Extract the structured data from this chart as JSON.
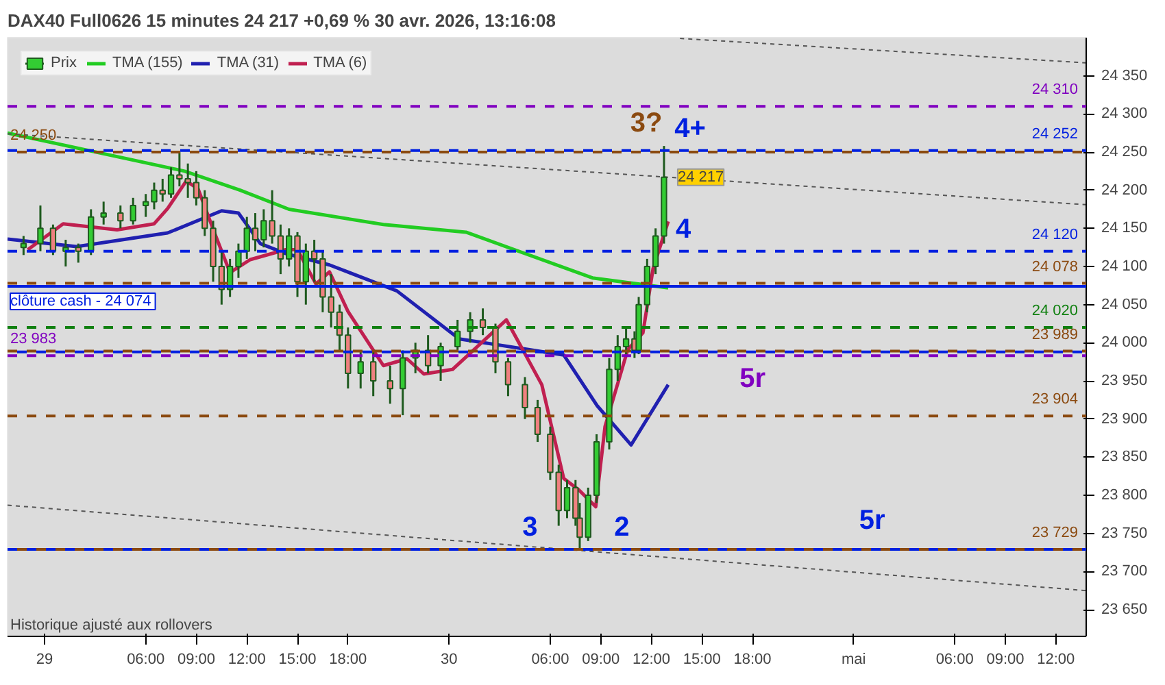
{
  "chart_data": {
    "type": "candlestick",
    "title": "DAX40 Full0626 15 minutes 24 217 +0,69 % 30 avr. 2026, 13:16:08",
    "annotations": [
      {
        "text": "3?",
        "x": "2026-04-30T11:42",
        "y": 24250
      },
      {
        "text": "4+",
        "x": "2026-04-30T14:18",
        "y": 24252
      },
      {
        "text": "4",
        "x": "2026-04-30T13:54",
        "y": 24120
      },
      {
        "text": "5r",
        "x": "2026-04-30T18:00",
        "y": 23983
      },
      {
        "text": "3",
        "x": "2026-04-30T04:48",
        "y": 23729
      },
      {
        "text": "2",
        "x": "2026-04-30T10:15",
        "y": 23729
      },
      {
        "text": "5r",
        "x": "2026-05-01T01:06",
        "y": 23729
      },
      {
        "text": "24 217",
        "x": "2026-04-30T12:45",
        "y": 24217
      },
      "Historique ajusté aux rollovers"
    ],
    "xlim": [
      "2026-04-28T21:48",
      "2026-05-01T13:48"
    ],
    "ylim": [
      23615,
      24400
    ],
    "xticks": [
      {
        "value": "2026-04-29",
        "label": "29"
      },
      {
        "value": "2026-04-29T06:00",
        "label": "06:00"
      },
      {
        "value": "2026-04-29T09:00",
        "label": "09:00"
      },
      {
        "value": "2026-04-29T12:00",
        "label": "12:00"
      },
      {
        "value": "2026-04-29T15:00",
        "label": "15:00"
      },
      {
        "value": "2026-04-29T18:00",
        "label": "18:00"
      },
      {
        "value": "2026-04-30",
        "label": "30"
      },
      {
        "value": "2026-04-30T06:00",
        "label": "06:00"
      },
      {
        "value": "2026-04-30T09:00",
        "label": "09:00"
      },
      {
        "value": "2026-04-30T12:00",
        "label": "12:00"
      },
      {
        "value": "2026-04-30T15:00",
        "label": "15:00"
      },
      {
        "value": "2026-04-30T18:00",
        "label": "18:00"
      },
      {
        "value": "2026-05-01",
        "label": "mai"
      },
      {
        "value": "2026-05-01T06:00",
        "label": "06:00"
      },
      {
        "value": "2026-05-01T09:00",
        "label": "09:00"
      },
      {
        "value": "2026-05-01T12:00",
        "label": "12:00"
      }
    ],
    "yticks": [
      {
        "value": 23650,
        "label": "23 650"
      },
      {
        "value": 23700,
        "label": "23 700"
      },
      {
        "value": 23750,
        "label": "23 750"
      },
      {
        "value": 23800,
        "label": "23 800"
      },
      {
        "value": 23850,
        "label": "23 850"
      },
      {
        "value": 23900,
        "label": "23 900"
      },
      {
        "value": 23950,
        "label": "23 950"
      },
      {
        "value": 24000,
        "label": "24 000"
      },
      {
        "value": 24050,
        "label": "24 050"
      },
      {
        "value": 24100,
        "label": "24 100"
      },
      {
        "value": 24150,
        "label": "24 150"
      },
      {
        "value": 24200,
        "label": "24 200"
      },
      {
        "value": 24250,
        "label": "24 250"
      },
      {
        "value": 24300,
        "label": "24 300"
      },
      {
        "value": 24350,
        "label": "24 350"
      }
    ],
    "grid": false,
    "legend": "top left",
    "series": [
      {
        "name": "Prix",
        "colors": [
          "#33cc33",
          "#33cc33",
          "#f08080",
          "#33cc33",
          "#f08080",
          "#33cc33",
          "#33cc33",
          "#f08080",
          "#33cc33",
          "#33cc33",
          "#33cc33",
          "#f08080",
          "#33cc33",
          "#f08080",
          "#f08080",
          "#f08080",
          "#f08080",
          "#f08080",
          "#f08080",
          "#33cc33",
          "#33cc33",
          "#33cc33",
          "#f08080",
          "#33cc33",
          "#f08080",
          "#f08080",
          "#33cc33",
          "#f08080",
          "#33cc33",
          "#f08080",
          "#f08080",
          "#f08080",
          "#f08080",
          "#f08080",
          "#33cc33",
          "#f08080",
          "#f08080",
          "#33cc33",
          "#33cc33",
          "#f08080",
          "#33cc33",
          "#33cc33",
          "#33cc33",
          "#f08080",
          "#f08080",
          "#f08080",
          "#f08080",
          "#f08080",
          "#f08080",
          "#f08080",
          "#33cc33",
          "#f08080",
          "#f08080",
          "#33cc33",
          "#33cc33",
          "#33cc33",
          "#33cc33",
          "#33cc33",
          "#f08080",
          "#33cc33",
          "#33cc33",
          "#33cc33",
          "#33cc33"
        ],
        "x": [
          "2026-04-28T22:45",
          "2026-04-28T23:45",
          "2026-04-29T00:30",
          "2026-04-29T01:15",
          "2026-04-29T02:00",
          "2026-04-29T02:45",
          "2026-04-29T03:30",
          "2026-04-29T04:30",
          "2026-04-29T05:15",
          "2026-04-29T06:00",
          "2026-04-29T06:30",
          "2026-04-29T07:00",
          "2026-04-29T07:30",
          "2026-04-29T08:00",
          "2026-04-29T08:30",
          "2026-04-29T09:00",
          "2026-04-29T09:30",
          "2026-04-29T10:00",
          "2026-04-29T10:30",
          "2026-04-29T11:00",
          "2026-04-29T11:30",
          "2026-04-29T12:00",
          "2026-04-29T12:30",
          "2026-04-29T13:00",
          "2026-04-29T13:30",
          "2026-04-29T14:00",
          "2026-04-29T14:30",
          "2026-04-29T15:00",
          "2026-04-29T15:30",
          "2026-04-29T16:00",
          "2026-04-29T16:30",
          "2026-04-29T17:00",
          "2026-04-29T17:30",
          "2026-04-29T18:00",
          "2026-04-29T18:45",
          "2026-04-29T19:30",
          "2026-04-29T20:30",
          "2026-04-29T21:15",
          "2026-04-29T22:00",
          "2026-04-29T22:45",
          "2026-04-29T23:30",
          "2026-04-30T00:30",
          "2026-04-30T01:15",
          "2026-04-30T02:00",
          "2026-04-30T02:45",
          "2026-04-30T03:30",
          "2026-04-30T04:30",
          "2026-04-30T05:15",
          "2026-04-30T06:00",
          "2026-04-30T06:30",
          "2026-04-30T07:00",
          "2026-04-30T07:30",
          "2026-04-30T07:45",
          "2026-04-30T08:15",
          "2026-04-30T08:45",
          "2026-04-30T09:30",
          "2026-04-30T10:00",
          "2026-04-30T10:30",
          "2026-04-30T11:00",
          "2026-04-30T11:15",
          "2026-04-30T11:45",
          "2026-04-30T12:15",
          "2026-04-30T12:45"
        ],
        "ohlc": [
          [
            24125,
            24140,
            24115,
            24130
          ],
          [
            24130,
            24180,
            24120,
            24150
          ],
          [
            24150,
            24155,
            24115,
            24120
          ],
          [
            24120,
            24135,
            24100,
            24125
          ],
          [
            24125,
            24130,
            24105,
            24120
          ],
          [
            24120,
            24175,
            24115,
            24165
          ],
          [
            24165,
            24185,
            24155,
            24170
          ],
          [
            24170,
            24180,
            24150,
            24160
          ],
          [
            24160,
            24190,
            24155,
            24180
          ],
          [
            24180,
            24195,
            24165,
            24185
          ],
          [
            24185,
            24210,
            24175,
            24200
          ],
          [
            24200,
            24215,
            24185,
            24195
          ],
          [
            24195,
            24230,
            24190,
            24220
          ],
          [
            24220,
            24250,
            24205,
            24215
          ],
          [
            24215,
            24235,
            24190,
            24210
          ],
          [
            24210,
            24225,
            24180,
            24190
          ],
          [
            24190,
            24200,
            24140,
            24150
          ],
          [
            24150,
            24160,
            24080,
            24100
          ],
          [
            24100,
            24120,
            24050,
            24070
          ],
          [
            24070,
            24110,
            24060,
            24100
          ],
          [
            24100,
            24130,
            24085,
            24120
          ],
          [
            24120,
            24165,
            24110,
            24150
          ],
          [
            24150,
            24170,
            24120,
            24135
          ],
          [
            24135,
            24175,
            24125,
            24160
          ],
          [
            24160,
            24200,
            24130,
            24140
          ],
          [
            24140,
            24155,
            24090,
            24110
          ],
          [
            24110,
            24150,
            24100,
            24140
          ],
          [
            24140,
            24145,
            24060,
            24080
          ],
          [
            24080,
            24130,
            24050,
            24120
          ],
          [
            24120,
            24135,
            24080,
            24110
          ],
          [
            24110,
            24120,
            24040,
            24060
          ],
          [
            24060,
            24090,
            24020,
            24040
          ],
          [
            24040,
            24050,
            23990,
            24010
          ],
          [
            24010,
            24020,
            23940,
            23960
          ],
          [
            23960,
            23990,
            23940,
            23975
          ],
          [
            23975,
            23990,
            23930,
            23950
          ],
          [
            23950,
            23970,
            23920,
            23940
          ],
          [
            23940,
            23990,
            23905,
            23980
          ],
          [
            23980,
            24000,
            23960,
            23990
          ],
          [
            23990,
            24010,
            23960,
            23970
          ],
          [
            23970,
            24000,
            23950,
            23995
          ],
          [
            23995,
            24030,
            23990,
            24015
          ],
          [
            24015,
            24040,
            24000,
            24030
          ],
          [
            24030,
            24045,
            24010,
            24020
          ],
          [
            24020,
            24025,
            23960,
            23975
          ],
          [
            23975,
            23980,
            23930,
            23945
          ],
          [
            23945,
            23955,
            23900,
            23915
          ],
          [
            23915,
            23925,
            23870,
            23880
          ],
          [
            23880,
            23890,
            23820,
            23830
          ],
          [
            23830,
            23840,
            23760,
            23780
          ],
          [
            23780,
            23820,
            23770,
            23810
          ],
          [
            23810,
            23820,
            23760,
            23770
          ],
          [
            23770,
            23790,
            23730,
            23745
          ],
          [
            23745,
            23810,
            23740,
            23800
          ],
          [
            23800,
            23880,
            23790,
            23870
          ],
          [
            23870,
            23980,
            23860,
            23965
          ],
          [
            23965,
            24010,
            23950,
            23995
          ],
          [
            23995,
            24020,
            23985,
            24005
          ],
          [
            24005,
            24015,
            23980,
            23990
          ],
          [
            23990,
            24060,
            23985,
            24050
          ],
          [
            24050,
            24110,
            24040,
            24100
          ],
          [
            24100,
            24150,
            24090,
            24140
          ],
          [
            24140,
            24258,
            24130,
            24217
          ]
        ]
      },
      {
        "name": "TMA (155)",
        "type": "line",
        "color": "#22cc22",
        "x": [
          "2026-04-28T21:48",
          "2026-04-29T08:18",
          "2026-04-29T11:36",
          "2026-04-29T14:30",
          "2026-04-29T20:06",
          "2026-04-30T01:00",
          "2026-04-30T08:30",
          "2026-04-30T13:00"
        ],
        "values": [
          24275,
          24225,
          24200,
          24175,
          24155,
          24145,
          24085,
          24072
        ]
      },
      {
        "name": "TMA (31)",
        "type": "line",
        "color": "#2020b0",
        "x": [
          "2026-04-28T21:48",
          "2026-04-29T01:54",
          "2026-04-29T07:18",
          "2026-04-29T10:30",
          "2026-04-29T11:30",
          "2026-04-29T12:48",
          "2026-04-29T14:18",
          "2026-04-29T16:54",
          "2026-04-29T20:54",
          "2026-04-30T00:36",
          "2026-04-30T06:48",
          "2026-04-30T08:48",
          "2026-04-30T10:48",
          "2026-04-30T13:00"
        ],
        "values": [
          24136,
          24126,
          24144,
          24173,
          24170,
          24130,
          24117,
          24102,
          24068,
          24005,
          23984,
          23917,
          23866,
          23945
        ]
      },
      {
        "name": "TMA (6)",
        "type": "line",
        "color": "#c02050",
        "x": [
          "2026-04-28T23:00",
          "2026-04-29T01:06",
          "2026-04-29T04:18",
          "2026-04-29T06:30",
          "2026-04-29T07:18",
          "2026-04-29T08:24",
          "2026-04-29T09:06",
          "2026-04-29T10:06",
          "2026-04-29T11:00",
          "2026-04-29T12:12",
          "2026-04-29T14:18",
          "2026-04-29T15:00",
          "2026-04-29T16:06",
          "2026-04-29T16:54",
          "2026-04-29T18:00",
          "2026-04-29T20:06",
          "2026-04-29T21:30",
          "2026-04-29T22:30",
          "2026-04-30T00:12",
          "2026-04-30T03:24",
          "2026-04-30T05:30",
          "2026-04-30T06:48",
          "2026-04-30T07:42",
          "2026-04-30T08:42",
          "2026-04-30T09:15",
          "2026-04-30T10:36",
          "2026-04-30T11:30",
          "2026-04-30T12:06",
          "2026-04-30T13:00"
        ],
        "values": [
          24122,
          24156,
          24148,
          24156,
          24176,
          24212,
          24202,
          24143,
          24092,
          24109,
          24122,
          24122,
          24077,
          24093,
          24041,
          23970,
          23979,
          23959,
          23965,
          24030,
          23945,
          23822,
          23807,
          23785,
          23890,
          23991,
          24013,
          24097,
          24159
        ]
      },
      {
        "type": "line",
        "color": "#555555",
        "line_style": "dotted",
        "x": [
          "2026-04-28T21:48",
          "2026-05-01T13:48"
        ],
        "values": [
          24274,
          24181
        ]
      },
      {
        "type": "line",
        "color": "#555555",
        "line_style": "dotted",
        "x": [
          "2026-04-30T13:42",
          "2026-05-01T13:48"
        ],
        "values": [
          24399,
          24367
        ]
      },
      {
        "type": "line",
        "color": "#555555",
        "line_style": "dotted",
        "x": [
          "2026-04-28T21:48",
          "2026-05-01T13:48"
        ],
        "values": [
          23787,
          23675
        ]
      }
    ],
    "ref_lines": [
      {
        "axis": "y",
        "value": 24310,
        "label": "24 310",
        "color": "#8000c0",
        "line_style": "dashed"
      },
      {
        "axis": "y",
        "value": 24252,
        "label": "24 252",
        "color": "#0020e0",
        "line_style": "dashed"
      },
      {
        "axis": "y",
        "value": 24250,
        "label": "24 250",
        "color": "#8b4a10",
        "line_style": "dashed"
      },
      {
        "axis": "y",
        "value": 24120,
        "label": "24 120",
        "color": "#0020e0",
        "line_style": "dashed"
      },
      {
        "axis": "y",
        "value": 24078,
        "label": "24 078",
        "color": "#8b4a10",
        "line_style": "dashed"
      },
      {
        "axis": "y",
        "value": 24074,
        "label": "clôture cash -  24 074",
        "color": "#0020e0",
        "line_style": "solid"
      },
      {
        "axis": "y",
        "value": 24020,
        "label": "24 020",
        "color": "#108010",
        "line_style": "dashed"
      },
      {
        "axis": "y",
        "value": 23989,
        "label": "23 989",
        "color": "#8b4a10",
        "line_style": "dashed"
      },
      {
        "axis": "y",
        "value": 23988,
        "color": "#0020e0",
        "line_style": "dashed"
      },
      {
        "axis": "y",
        "value": 23983,
        "label": "23 983",
        "color": "#8000c0",
        "line_style": "dashed"
      },
      {
        "axis": "y",
        "value": 23904,
        "label": "23 904",
        "color": "#8b4a10",
        "line_style": "dashed"
      },
      {
        "axis": "y",
        "value": 23729,
        "color": "#0020e0",
        "line_style": "dashed"
      },
      {
        "axis": "y",
        "value": 23729,
        "label": "23 729",
        "color": "#8b4a10",
        "line_style": "dashed"
      }
    ]
  }
}
